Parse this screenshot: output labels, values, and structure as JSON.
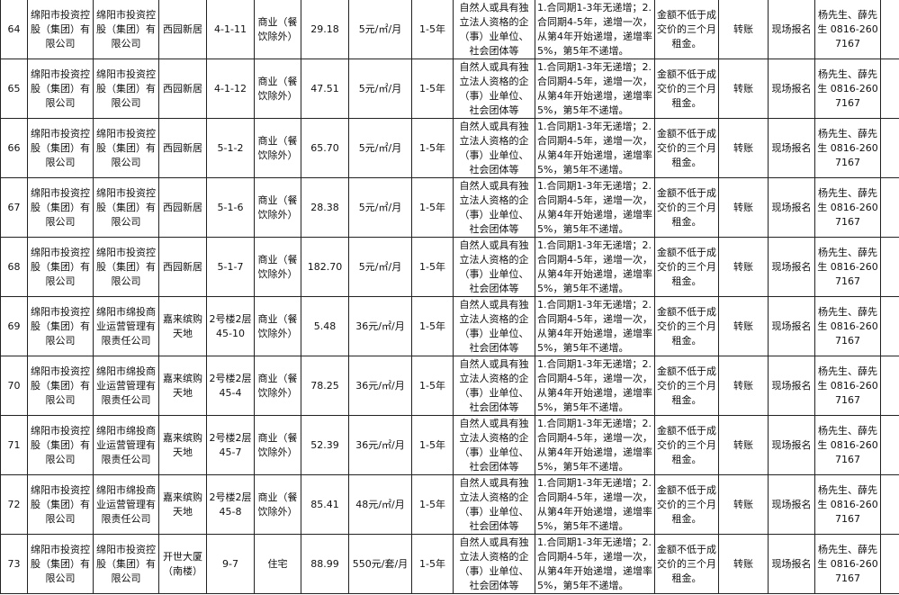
{
  "rows": [
    {
      "no": "64",
      "lessor": "绵阳市投资控股（集团）有限公司",
      "owner": "绵阳市投资控股（集团）有限公司",
      "project": "西园新居",
      "room": "4-1-11",
      "use": "商业（餐饮除外）",
      "area": "29.18",
      "price": "5元/㎡/月",
      "term": "1-5年",
      "qual": "自然人或具有独立法人资格的企（事）业单位、社会团体等",
      "incr": "1.合同期1-3年无递增；2.合同期4-5年，递增一次，从第4年开始递增，递增率5%，第5年不递增。",
      "deposit": "金额不低于成交价的三个月租金。",
      "pay": "转账",
      "signup": "现场报名",
      "contact": "杨先生、薛先生 0816-2607167"
    },
    {
      "no": "65",
      "lessor": "绵阳市投资控股（集团）有限公司",
      "owner": "绵阳市投资控股（集团）有限公司",
      "project": "西园新居",
      "room": "4-1-12",
      "use": "商业（餐饮除外）",
      "area": "47.51",
      "price": "5元/㎡/月",
      "term": "1-5年",
      "qual": "自然人或具有独立法人资格的企（事）业单位、社会团体等",
      "incr": "1.合同期1-3年无递增；2.合同期4-5年，递增一次，从第4年开始递增，递增率5%，第5年不递增。",
      "deposit": "金额不低于成交价的三个月租金。",
      "pay": "转账",
      "signup": "现场报名",
      "contact": "杨先生、薛先生 0816-2607167"
    },
    {
      "no": "66",
      "lessor": "绵阳市投资控股（集团）有限公司",
      "owner": "绵阳市投资控股（集团）有限公司",
      "project": "西园新居",
      "room": "5-1-2",
      "use": "商业（餐饮除外）",
      "area": "65.70",
      "price": "5元/㎡/月",
      "term": "1-5年",
      "qual": "自然人或具有独立法人资格的企（事）业单位、社会团体等",
      "incr": "1.合同期1-3年无递增；2.合同期4-5年，递增一次，从第4年开始递增，递增率5%，第5年不递增。",
      "deposit": "金额不低于成交价的三个月租金。",
      "pay": "转账",
      "signup": "现场报名",
      "contact": "杨先生、薛先生 0816-2607167"
    },
    {
      "no": "67",
      "lessor": "绵阳市投资控股（集团）有限公司",
      "owner": "绵阳市投资控股（集团）有限公司",
      "project": "西园新居",
      "room": "5-1-6",
      "use": "商业（餐饮除外）",
      "area": "28.38",
      "price": "5元/㎡/月",
      "term": "1-5年",
      "qual": "自然人或具有独立法人资格的企（事）业单位、社会团体等",
      "incr": "1.合同期1-3年无递增；2.合同期4-5年，递增一次，从第4年开始递增，递增率5%，第5年不递增。",
      "deposit": "金额不低于成交价的三个月租金。",
      "pay": "转账",
      "signup": "现场报名",
      "contact": "杨先生、薛先生 0816-2607167"
    },
    {
      "no": "68",
      "lessor": "绵阳市投资控股（集团）有限公司",
      "owner": "绵阳市投资控股（集团）有限公司",
      "project": "西园新居",
      "room": "5-1-7",
      "use": "商业（餐饮除外）",
      "area": "182.70",
      "price": "5元/㎡/月",
      "term": "1-5年",
      "qual": "自然人或具有独立法人资格的企（事）业单位、社会团体等",
      "incr": "1.合同期1-3年无递增；2.合同期4-5年，递增一次，从第4年开始递增，递增率5%，第5年不递增。",
      "deposit": "金额不低于成交价的三个月租金。",
      "pay": "转账",
      "signup": "现场报名",
      "contact": "杨先生、薛先生 0816-2607167"
    },
    {
      "no": "69",
      "lessor": "绵阳市投资控股（集团）有限公司",
      "owner": "绵阳市绵投商业运营管理有限责任公司",
      "project": "嘉来缤购天地",
      "room": "2号楼2层45-10",
      "use": "商业（餐饮除外）",
      "area": "5.48",
      "price": "36元/㎡/月",
      "term": "1-5年",
      "qual": "自然人或具有独立法人资格的企（事）业单位、社会团体等",
      "incr": "1.合同期1-3年无递增；2.合同期4-5年，递增一次，从第4年开始递增，递增率5%，第5年不递增。",
      "deposit": "金额不低于成交价的三个月租金。",
      "pay": "转账",
      "signup": "现场报名",
      "contact": "杨先生、薛先生 0816-2607167"
    },
    {
      "no": "70",
      "lessor": "绵阳市投资控股（集团）有限公司",
      "owner": "绵阳市绵投商业运营管理有限责任公司",
      "project": "嘉来缤购天地",
      "room": "2号楼2层45-4",
      "use": "商业（餐饮除外）",
      "area": "78.25",
      "price": "36元/㎡/月",
      "term": "1-5年",
      "qual": "自然人或具有独立法人资格的企（事）业单位、社会团体等",
      "incr": "1.合同期1-3年无递增；2.合同期4-5年，递增一次，从第4年开始递增，递增率5%，第5年不递增。",
      "deposit": "金额不低于成交价的三个月租金。",
      "pay": "转账",
      "signup": "现场报名",
      "contact": "杨先生、薛先生 0816-2607167"
    },
    {
      "no": "71",
      "lessor": "绵阳市投资控股（集团）有限公司",
      "owner": "绵阳市绵投商业运营管理有限责任公司",
      "project": "嘉来缤购天地",
      "room": "2号楼2层45-7",
      "use": "商业（餐饮除外）",
      "area": "52.39",
      "price": "36元/㎡/月",
      "term": "1-5年",
      "qual": "自然人或具有独立法人资格的企（事）业单位、社会团体等",
      "incr": "1.合同期1-3年无递增；2.合同期4-5年，递增一次，从第4年开始递增，递增率5%，第5年不递增。",
      "deposit": "金额不低于成交价的三个月租金。",
      "pay": "转账",
      "signup": "现场报名",
      "contact": "杨先生、薛先生 0816-2607167"
    },
    {
      "no": "72",
      "lessor": "绵阳市投资控股（集团）有限公司",
      "owner": "绵阳市绵投商业运营管理有限责任公司",
      "project": "嘉来缤购天地",
      "room": "2号楼2层45-8",
      "use": "商业（餐饮除外）",
      "area": "85.41",
      "price": "48元/㎡/月",
      "term": "1-5年",
      "qual": "自然人或具有独立法人资格的企（事）业单位、社会团体等",
      "incr": "1.合同期1-3年无递增；2.合同期4-5年，递增一次，从第4年开始递增，递增率5%，第5年不递增。",
      "deposit": "金额不低于成交价的三个月租金。",
      "pay": "转账",
      "signup": "现场报名",
      "contact": "杨先生、薛先生 0816-2607167"
    },
    {
      "no": "73",
      "lessor": "绵阳市投资控股（集团）有限公司",
      "owner": "绵阳市投资控股（集团）有限公司",
      "project": "开世大厦（南楼）",
      "room": "9-7",
      "use": "住宅",
      "area": "88.99",
      "price": "550元/套/月",
      "term": "1-5年",
      "qual": "自然人或具有独立法人资格的企（事）业单位、社会团体等",
      "incr": "1.合同期1-3年无递增；2.合同期4-5年，递增一次，从第4年开始递增，递增率5%，第5年不递增。",
      "deposit": "金额不低于成交价的三个月租金。",
      "pay": "转账",
      "signup": "现场报名",
      "contact": "杨先生、薛先生 0816-2607167"
    }
  ]
}
